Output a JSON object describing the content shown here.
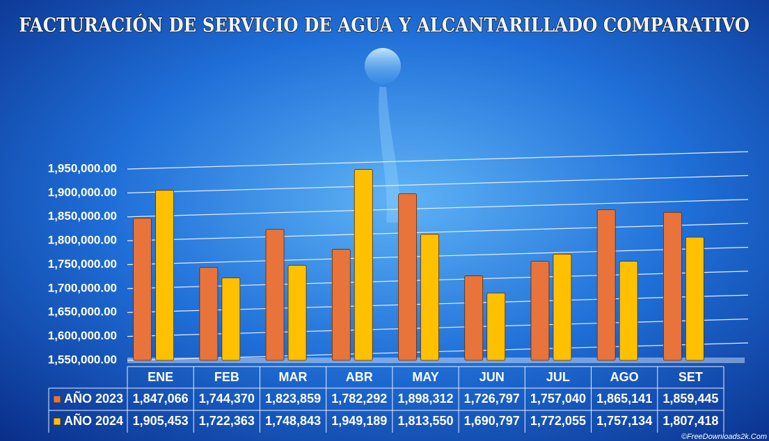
{
  "chart_data": {
    "type": "bar",
    "title": "FACTURACIÓN DE SERVICIO DE AGUA Y ALCANTARILLADO COMPARATIVO",
    "categories": [
      "ENE",
      "FEB",
      "MAR",
      "ABR",
      "MAY",
      "JUN",
      "JUL",
      "AGO",
      "SET"
    ],
    "series": [
      {
        "name": "AÑO 2023",
        "color": "#e8743b",
        "values": [
          1847066,
          1744370,
          1823859,
          1782292,
          1898312,
          1726797,
          1757040,
          1865141,
          1859445
        ],
        "value_labels": [
          "1,847,066",
          "1,744,370",
          "1,823,859",
          "1,782,292",
          "1,898,312",
          "1,726,797",
          "1,757,040",
          "1,865,141",
          "1,859,445"
        ]
      },
      {
        "name": "AÑO 2024",
        "color": "#ffc000",
        "values": [
          1905453,
          1722363,
          1748843,
          1949189,
          1813550,
          1690797,
          1772055,
          1757134,
          1807418
        ],
        "value_labels": [
          "1,905,453",
          "1,722,363",
          "1,748,843",
          "1,949,189",
          "1,813,550",
          "1,690,797",
          "1,772,055",
          "1,757,134",
          "1,807,418"
        ]
      }
    ],
    "ylim": [
      1550000,
      1950000
    ],
    "yticks": [
      {
        "value": 1550000,
        "label": "1,550,000.00"
      },
      {
        "value": 1600000,
        "label": "1,600,000.00"
      },
      {
        "value": 1650000,
        "label": "1,650,000.00"
      },
      {
        "value": 1700000,
        "label": "1,700,000.00"
      },
      {
        "value": 1750000,
        "label": "1,750,000.00"
      },
      {
        "value": 1800000,
        "label": "1,800,000.00"
      },
      {
        "value": 1850000,
        "label": "1,850,000.00"
      },
      {
        "value": 1900000,
        "label": "1,900,000.00"
      },
      {
        "value": 1950000,
        "label": "1,950,000.00"
      }
    ],
    "grid": true,
    "watermark": "©FreeDownloads2k.Com"
  }
}
